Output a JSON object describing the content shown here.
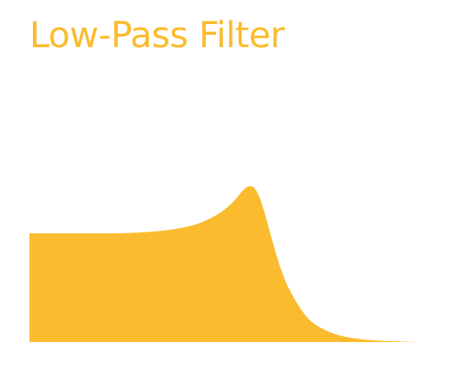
{
  "title": "Low-Pass Filter",
  "colors": {
    "accent": "#FBBB2E",
    "background": "#FFFFFF"
  },
  "response_curve": {
    "shape": "low-pass frequency response",
    "passband_level": 1.0,
    "resonance_peak_level": 1.46,
    "stopband_level": 0.0
  }
}
